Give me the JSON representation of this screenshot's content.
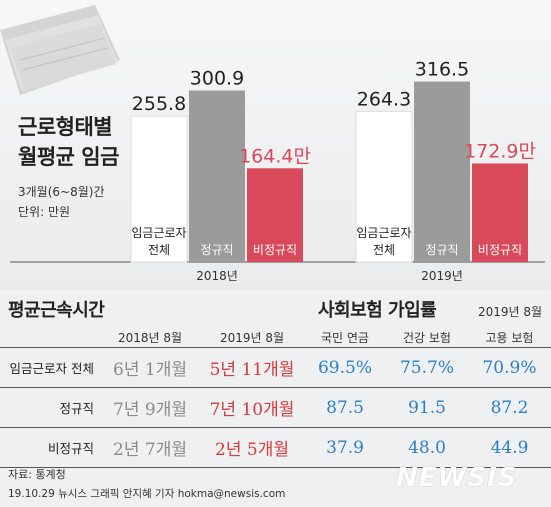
{
  "title_line1": "근로형태별",
  "title_line2": "월평균 임금",
  "period": "3개월(6~8월)간",
  "unit": "단위: 만원",
  "chart_data": {
    "type": "bar",
    "groups": [
      "2018년",
      "2019년"
    ],
    "categories": [
      "임금근로자 전체",
      "정규직",
      "비정규직"
    ],
    "category_labels": [
      [
        "임금근로자",
        "전체"
      ],
      [
        "정규직"
      ],
      [
        "비정규직"
      ]
    ],
    "series": [
      {
        "group": "2018년",
        "values": [
          255.8,
          300.9,
          164.4
        ]
      },
      {
        "group": "2019년",
        "values": [
          264.3,
          316.5,
          172.9
        ]
      }
    ],
    "value_suffix_last": "만",
    "colors": [
      "#ffffff",
      "#9b9b9b",
      "#d84a5a"
    ]
  },
  "tenure": {
    "heading": "평균근속시간",
    "columns": [
      "2018년 8월",
      "2019년 8월"
    ],
    "rows": [
      {
        "label": "임금근로자 전체",
        "y2018": "6년 1개월",
        "y2019": "5년 11개월"
      },
      {
        "label": "정규직",
        "y2018": "7년 9개월",
        "y2019": "7년 10개월"
      },
      {
        "label": "비정규직",
        "y2018": "2년 7개월",
        "y2019": "2년 5개월"
      }
    ]
  },
  "insurance": {
    "heading": "사회보험 가입률",
    "date": "2019년 8월",
    "columns": [
      "국민 연금",
      "건강 보험",
      "고용 보험"
    ],
    "rows": [
      [
        "69.5%",
        "75.7%",
        "70.9%"
      ],
      [
        "87.5",
        "91.5",
        "87.2"
      ],
      [
        "37.9",
        "48.0",
        "44.9"
      ]
    ]
  },
  "source": "자료: 통계청",
  "credit": "19.10.29 뉴시스 그래픽 안지혜 기자 hokma@newsis.com",
  "logo": "NEWSIS"
}
